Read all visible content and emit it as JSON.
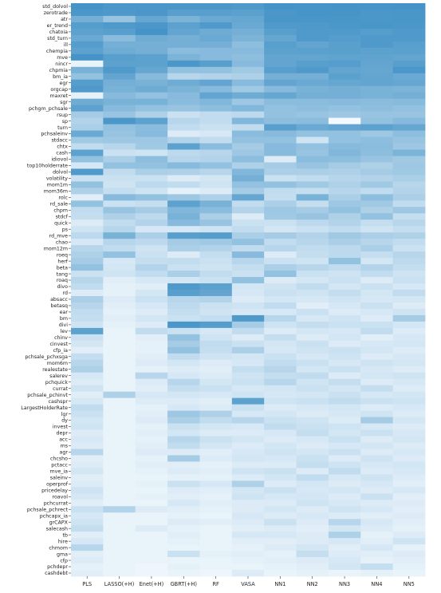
{
  "chart_data": {
    "type": "heatmap",
    "title": "",
    "xlabel": "",
    "ylabel": "",
    "colormap": {
      "low": "#f7fbff",
      "high": "#4292c6"
    },
    "models": [
      "PLS",
      "LASSO(+H)",
      "Enet(+H)",
      "GBRT(+H)",
      "RF",
      "VASA",
      "NN1",
      "NN2",
      "NN3",
      "NN4",
      "NN5"
    ],
    "characteristics": [
      "std_dolvol",
      "zerotrade",
      "atr",
      "er_trend",
      "chatoia",
      "std_turn",
      "ill",
      "chempia",
      "mve",
      "nincr",
      "chpmia",
      "bm_ia",
      "egr",
      "orgcap",
      "maxret",
      "sgr",
      "pchgm_pchsale",
      "rsup",
      "sp",
      "turn",
      "pchsaleinv",
      "stdacc",
      "chtx",
      "cash",
      "idiovol",
      "top10holderrate",
      "dolvol",
      "volatility",
      "mom1m",
      "mom36m",
      "rolc",
      "rd_sale",
      "chpm",
      "stdcf",
      "quick",
      "ps",
      "rd_mve",
      "chao",
      "mom12m",
      "roeq",
      "herf",
      "beta",
      "tang",
      "roaq",
      "divo",
      "rd",
      "absacc",
      "betasq",
      "ear",
      "bm",
      "divi",
      "lev",
      "chinv",
      "cinvest",
      "cfp_ia",
      "pchsale_pchxsga",
      "mom6m",
      "realestate",
      "salerev",
      "pchquick",
      "currat",
      "pchsale_pchinvt",
      "cashspr",
      "LargestHolderRate",
      "lgr",
      "dy",
      "invest",
      "depr",
      "acc",
      "ms",
      "agr",
      "chcsho",
      "pctacc",
      "mve_ia",
      "saleinv",
      "operprof",
      "pricedelay",
      "roavol",
      "pchcurrat",
      "pchsale_pchrect",
      "pchcapx_ia",
      "grCAPX",
      "salecash",
      "tb",
      "hire",
      "chmom",
      "gma",
      "cfp",
      "pchdepr",
      "cashdebt"
    ],
    "importance": [
      [
        0.98,
        0.95,
        0.95,
        0.95,
        0.95,
        0.92,
        0.98,
        0.97,
        0.98,
        0.97,
        0.98
      ],
      [
        0.95,
        0.93,
        0.95,
        0.88,
        0.88,
        0.86,
        0.95,
        0.97,
        0.97,
        0.95,
        0.96
      ],
      [
        0.72,
        0.52,
        0.8,
        0.68,
        0.78,
        0.8,
        0.96,
        0.96,
        0.96,
        0.95,
        0.96
      ],
      [
        0.9,
        0.92,
        0.95,
        0.85,
        0.92,
        0.78,
        0.92,
        0.93,
        0.95,
        0.96,
        0.95
      ],
      [
        0.85,
        0.88,
        0.98,
        0.82,
        0.75,
        0.72,
        0.88,
        0.92,
        0.92,
        0.9,
        0.92
      ],
      [
        0.78,
        0.6,
        0.75,
        0.72,
        0.78,
        0.68,
        0.8,
        0.92,
        0.9,
        0.92,
        0.92
      ],
      [
        0.9,
        0.72,
        0.72,
        0.72,
        0.72,
        0.58,
        0.88,
        0.82,
        0.87,
        0.92,
        0.88
      ],
      [
        0.85,
        0.75,
        0.72,
        0.6,
        0.62,
        0.62,
        0.85,
        0.86,
        0.87,
        0.85,
        0.86
      ],
      [
        0.98,
        0.88,
        0.85,
        0.68,
        0.62,
        0.58,
        0.82,
        0.82,
        0.84,
        0.84,
        0.82
      ],
      [
        0.08,
        0.85,
        0.85,
        0.95,
        0.88,
        0.62,
        0.82,
        0.88,
        0.9,
        0.82,
        0.88
      ],
      [
        0.7,
        0.92,
        0.8,
        0.55,
        0.55,
        0.48,
        0.88,
        0.92,
        0.82,
        0.8,
        0.95
      ],
      [
        0.55,
        0.82,
        0.62,
        0.35,
        0.38,
        0.4,
        0.72,
        0.72,
        0.86,
        0.82,
        0.78
      ],
      [
        0.9,
        0.72,
        0.7,
        0.75,
        0.82,
        0.62,
        0.82,
        0.78,
        0.8,
        0.82,
        0.8
      ],
      [
        0.92,
        0.7,
        0.75,
        0.68,
        0.62,
        0.48,
        0.62,
        0.7,
        0.72,
        0.7,
        0.68
      ],
      [
        0.1,
        0.62,
        0.55,
        0.62,
        0.82,
        0.75,
        0.8,
        0.72,
        0.72,
        0.7,
        0.72
      ],
      [
        0.75,
        0.7,
        0.7,
        0.6,
        0.65,
        0.5,
        0.6,
        0.6,
        0.62,
        0.6,
        0.62
      ],
      [
        0.85,
        0.62,
        0.55,
        0.52,
        0.58,
        0.65,
        0.55,
        0.58,
        0.55,
        0.58,
        0.55
      ],
      [
        0.45,
        0.52,
        0.4,
        0.25,
        0.3,
        0.32,
        0.55,
        0.52,
        0.5,
        0.52,
        0.52
      ],
      [
        0.38,
        0.95,
        0.85,
        0.35,
        0.3,
        0.65,
        0.58,
        0.6,
        0.02,
        0.55,
        0.62
      ],
      [
        0.42,
        0.55,
        0.6,
        0.3,
        0.25,
        0.3,
        0.88,
        0.78,
        0.82,
        0.85,
        0.8
      ],
      [
        0.78,
        0.52,
        0.62,
        0.15,
        0.18,
        0.6,
        0.62,
        0.55,
        0.55,
        0.5,
        0.58
      ],
      [
        0.48,
        0.5,
        0.5,
        0.38,
        0.3,
        0.55,
        0.55,
        0.22,
        0.55,
        0.58,
        0.52
      ],
      [
        0.3,
        0.35,
        0.48,
        0.85,
        0.6,
        0.45,
        0.62,
        0.55,
        0.62,
        0.6,
        0.5
      ],
      [
        0.85,
        0.25,
        0.22,
        0.32,
        0.35,
        0.5,
        0.62,
        0.52,
        0.65,
        0.58,
        0.68
      ],
      [
        0.55,
        0.42,
        0.58,
        0.35,
        0.38,
        0.58,
        0.15,
        0.6,
        0.58,
        0.52,
        0.48
      ],
      [
        0.18,
        0.55,
        0.55,
        0.62,
        0.55,
        0.4,
        0.45,
        0.52,
        0.45,
        0.4,
        0.5
      ],
      [
        0.92,
        0.3,
        0.42,
        0.4,
        0.35,
        0.65,
        0.42,
        0.42,
        0.4,
        0.45,
        0.48
      ],
      [
        0.25,
        0.25,
        0.25,
        0.15,
        0.2,
        0.72,
        0.25,
        0.3,
        0.35,
        0.38,
        0.42
      ],
      [
        0.55,
        0.22,
        0.32,
        0.3,
        0.22,
        0.55,
        0.55,
        0.48,
        0.4,
        0.48,
        0.35
      ],
      [
        0.4,
        0.28,
        0.22,
        0.1,
        0.15,
        0.45,
        0.3,
        0.28,
        0.35,
        0.3,
        0.38
      ],
      [
        0.12,
        0.62,
        0.55,
        0.5,
        0.4,
        0.8,
        0.28,
        0.7,
        0.42,
        0.58,
        0.42
      ],
      [
        0.55,
        0.25,
        0.28,
        0.85,
        0.7,
        0.3,
        0.42,
        0.28,
        0.5,
        0.48,
        0.3
      ],
      [
        0.3,
        0.52,
        0.45,
        0.65,
        0.6,
        0.38,
        0.5,
        0.45,
        0.55,
        0.4,
        0.5
      ],
      [
        0.28,
        0.4,
        0.32,
        0.7,
        0.42,
        0.15,
        0.48,
        0.52,
        0.4,
        0.55,
        0.28
      ],
      [
        0.15,
        0.3,
        0.38,
        0.62,
        0.52,
        0.25,
        0.25,
        0.32,
        0.38,
        0.28,
        0.35
      ],
      [
        0.22,
        0.35,
        0.18,
        0.18,
        0.22,
        0.3,
        0.2,
        0.25,
        0.3,
        0.22,
        0.28
      ],
      [
        0.32,
        0.7,
        0.42,
        0.88,
        0.9,
        0.42,
        0.45,
        0.38,
        0.48,
        0.42,
        0.4
      ],
      [
        0.18,
        0.35,
        0.32,
        0.45,
        0.48,
        0.55,
        0.3,
        0.35,
        0.42,
        0.35,
        0.3
      ],
      [
        0.35,
        0.3,
        0.22,
        0.42,
        0.38,
        0.3,
        0.35,
        0.3,
        0.32,
        0.42,
        0.25
      ],
      [
        0.4,
        0.55,
        0.25,
        0.15,
        0.28,
        0.62,
        0.15,
        0.28,
        0.32,
        0.28,
        0.35
      ],
      [
        0.45,
        0.18,
        0.28,
        0.3,
        0.25,
        0.35,
        0.25,
        0.22,
        0.55,
        0.2,
        0.32
      ],
      [
        0.55,
        0.2,
        0.38,
        0.25,
        0.22,
        0.28,
        0.42,
        0.35,
        0.3,
        0.38,
        0.28
      ],
      [
        0.25,
        0.22,
        0.3,
        0.42,
        0.3,
        0.25,
        0.55,
        0.25,
        0.22,
        0.3,
        0.22
      ],
      [
        0.35,
        0.12,
        0.18,
        0.2,
        0.25,
        0.55,
        0.15,
        0.2,
        0.25,
        0.15,
        0.25
      ],
      [
        0.3,
        0.1,
        0.12,
        0.92,
        0.85,
        0.2,
        0.22,
        0.3,
        0.2,
        0.25,
        0.18
      ],
      [
        0.15,
        0.1,
        0.2,
        0.88,
        0.82,
        0.18,
        0.25,
        0.22,
        0.28,
        0.2,
        0.3
      ],
      [
        0.42,
        0.15,
        0.25,
        0.35,
        0.38,
        0.15,
        0.2,
        0.18,
        0.22,
        0.18,
        0.2
      ],
      [
        0.35,
        0.12,
        0.18,
        0.32,
        0.25,
        0.22,
        0.3,
        0.12,
        0.18,
        0.25,
        0.15
      ],
      [
        0.3,
        0.1,
        0.15,
        0.28,
        0.22,
        0.18,
        0.18,
        0.25,
        0.15,
        0.18,
        0.22
      ],
      [
        0.28,
        0.12,
        0.2,
        0.25,
        0.28,
        0.92,
        0.35,
        0.18,
        0.22,
        0.15,
        0.45
      ],
      [
        0.22,
        0.1,
        0.15,
        0.95,
        0.9,
        0.45,
        0.22,
        0.28,
        0.25,
        0.25,
        0.2
      ],
      [
        0.85,
        0.08,
        0.3,
        0.25,
        0.18,
        0.3,
        0.15,
        0.2,
        0.18,
        0.3,
        0.15
      ],
      [
        0.25,
        0.08,
        0.12,
        0.55,
        0.22,
        0.15,
        0.28,
        0.15,
        0.2,
        0.12,
        0.18
      ],
      [
        0.2,
        0.08,
        0.1,
        0.45,
        0.3,
        0.25,
        0.2,
        0.25,
        0.15,
        0.18,
        0.2
      ],
      [
        0.12,
        0.08,
        0.1,
        0.55,
        0.28,
        0.42,
        0.18,
        0.22,
        0.25,
        0.2,
        0.15
      ],
      [
        0.28,
        0.08,
        0.12,
        0.3,
        0.22,
        0.2,
        0.25,
        0.18,
        0.22,
        0.15,
        0.18
      ],
      [
        0.35,
        0.08,
        0.15,
        0.2,
        0.15,
        0.18,
        0.3,
        0.25,
        0.18,
        0.22,
        0.2
      ],
      [
        0.4,
        0.08,
        0.1,
        0.15,
        0.12,
        0.28,
        0.35,
        0.2,
        0.25,
        0.18,
        0.15
      ],
      [
        0.18,
        0.08,
        0.35,
        0.18,
        0.15,
        0.22,
        0.28,
        0.3,
        0.15,
        0.2,
        0.22
      ],
      [
        0.15,
        0.08,
        0.15,
        0.35,
        0.2,
        0.25,
        0.35,
        0.22,
        0.28,
        0.15,
        0.18
      ],
      [
        0.22,
        0.08,
        0.12,
        0.28,
        0.25,
        0.18,
        0.2,
        0.25,
        0.2,
        0.28,
        0.15
      ],
      [
        0.12,
        0.4,
        0.18,
        0.2,
        0.18,
        0.22,
        0.18,
        0.2,
        0.25,
        0.18,
        0.2
      ],
      [
        0.18,
        0.08,
        0.15,
        0.15,
        0.12,
        0.85,
        0.22,
        0.25,
        0.3,
        0.25,
        0.22
      ],
      [
        0.3,
        0.08,
        0.1,
        0.18,
        0.15,
        0.25,
        0.15,
        0.18,
        0.2,
        0.15,
        0.18
      ],
      [
        0.25,
        0.08,
        0.12,
        0.5,
        0.4,
        0.18,
        0.2,
        0.15,
        0.18,
        0.22,
        0.15
      ],
      [
        0.2,
        0.08,
        0.15,
        0.42,
        0.3,
        0.35,
        0.25,
        0.22,
        0.15,
        0.45,
        0.2
      ],
      [
        0.22,
        0.08,
        0.1,
        0.25,
        0.2,
        0.18,
        0.3,
        0.25,
        0.22,
        0.18,
        0.15
      ],
      [
        0.15,
        0.08,
        0.12,
        0.2,
        0.15,
        0.15,
        0.18,
        0.28,
        0.2,
        0.25,
        0.18
      ],
      [
        0.18,
        0.08,
        0.1,
        0.35,
        0.25,
        0.2,
        0.15,
        0.18,
        0.25,
        0.15,
        0.2
      ],
      [
        0.15,
        0.08,
        0.12,
        0.3,
        0.2,
        0.15,
        0.2,
        0.15,
        0.18,
        0.2,
        0.15
      ],
      [
        0.35,
        0.08,
        0.15,
        0.15,
        0.12,
        0.18,
        0.22,
        0.2,
        0.25,
        0.15,
        0.18
      ],
      [
        0.12,
        0.08,
        0.1,
        0.45,
        0.15,
        0.2,
        0.18,
        0.25,
        0.15,
        0.22,
        0.15
      ],
      [
        0.15,
        0.08,
        0.12,
        0.12,
        0.1,
        0.15,
        0.15,
        0.28,
        0.22,
        0.18,
        0.2
      ],
      [
        0.2,
        0.08,
        0.1,
        0.15,
        0.12,
        0.22,
        0.25,
        0.15,
        0.3,
        0.15,
        0.18
      ],
      [
        0.12,
        0.08,
        0.08,
        0.1,
        0.1,
        0.15,
        0.2,
        0.3,
        0.18,
        0.22,
        0.15
      ],
      [
        0.15,
        0.08,
        0.1,
        0.25,
        0.18,
        0.4,
        0.15,
        0.2,
        0.15,
        0.18,
        0.12
      ],
      [
        0.22,
        0.08,
        0.08,
        0.15,
        0.12,
        0.2,
        0.25,
        0.18,
        0.2,
        0.15,
        0.18
      ],
      [
        0.18,
        0.08,
        0.1,
        0.12,
        0.1,
        0.22,
        0.18,
        0.2,
        0.15,
        0.25,
        0.12
      ],
      [
        0.12,
        0.08,
        0.08,
        0.18,
        0.12,
        0.15,
        0.15,
        0.22,
        0.18,
        0.15,
        0.15
      ],
      [
        0.25,
        0.38,
        0.15,
        0.12,
        0.1,
        0.15,
        0.2,
        0.15,
        0.22,
        0.18,
        0.12
      ],
      [
        0.18,
        0.08,
        0.08,
        0.1,
        0.08,
        0.18,
        0.15,
        0.18,
        0.15,
        0.12,
        0.15
      ],
      [
        0.22,
        0.08,
        0.08,
        0.15,
        0.12,
        0.15,
        0.25,
        0.15,
        0.35,
        0.18,
        0.12
      ],
      [
        0.28,
        0.08,
        0.15,
        0.1,
        0.08,
        0.12,
        0.15,
        0.12,
        0.2,
        0.15,
        0.1
      ],
      [
        0.12,
        0.08,
        0.08,
        0.12,
        0.08,
        0.18,
        0.18,
        0.15,
        0.4,
        0.1,
        0.15
      ],
      [
        0.18,
        0.08,
        0.08,
        0.1,
        0.08,
        0.12,
        0.12,
        0.15,
        0.18,
        0.12,
        0.22
      ],
      [
        0.35,
        0.08,
        0.08,
        0.08,
        0.08,
        0.1,
        0.15,
        0.2,
        0.12,
        0.18,
        0.1
      ],
      [
        0.12,
        0.08,
        0.08,
        0.25,
        0.1,
        0.12,
        0.1,
        0.28,
        0.15,
        0.12,
        0.15
      ],
      [
        0.15,
        0.08,
        0.08,
        0.08,
        0.08,
        0.1,
        0.12,
        0.15,
        0.18,
        0.1,
        0.12
      ],
      [
        0.1,
        0.08,
        0.05,
        0.1,
        0.08,
        0.08,
        0.1,
        0.12,
        0.2,
        0.28,
        0.1
      ],
      [
        0.12,
        0.08,
        0.05,
        0.08,
        0.05,
        0.15,
        0.08,
        0.1,
        0.08,
        0.1,
        0.08
      ]
    ]
  }
}
